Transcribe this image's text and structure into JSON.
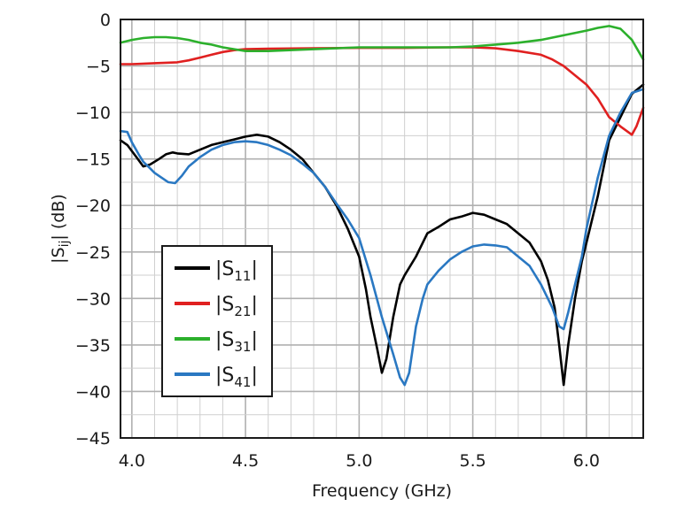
{
  "chart_data": {
    "type": "line",
    "title": "",
    "xlabel": "Frequency (GHz)",
    "ylabel": {
      "prefix": "|S",
      "sub": "ij",
      "suffix": "| (dB)"
    },
    "xlim": [
      3.95,
      6.25
    ],
    "ylim": [
      -45,
      0
    ],
    "x_ticks": [
      4.0,
      4.5,
      5.0,
      5.5,
      6.0
    ],
    "x_tick_labels": [
      "4.0",
      "4.5",
      "5.0",
      "5.5",
      "6.0"
    ],
    "y_ticks": [
      0,
      -5,
      -10,
      -15,
      -20,
      -25,
      -30,
      -35,
      -40,
      -45
    ],
    "y_tick_labels": [
      "0",
      "−5",
      "−10",
      "−15",
      "−20",
      "−25",
      "−30",
      "−35",
      "−40",
      "−45"
    ],
    "grid": true,
    "legend_position": "lower-left",
    "series": [
      {
        "label": {
          "prefix": "|S",
          "sub": "11",
          "suffix": "|"
        },
        "color": "#000000",
        "x": [
          3.95,
          3.98,
          4.02,
          4.05,
          4.08,
          4.12,
          4.15,
          4.18,
          4.2,
          4.25,
          4.3,
          4.35,
          4.4,
          4.45,
          4.5,
          4.55,
          4.6,
          4.65,
          4.7,
          4.75,
          4.8,
          4.85,
          4.9,
          4.95,
          5.0,
          5.03,
          5.05,
          5.08,
          5.1,
          5.12,
          5.15,
          5.18,
          5.2,
          5.25,
          5.3,
          5.35,
          5.4,
          5.45,
          5.5,
          5.55,
          5.6,
          5.65,
          5.7,
          5.75,
          5.8,
          5.83,
          5.86,
          5.88,
          5.9,
          5.92,
          5.95,
          5.98,
          6.0,
          6.05,
          6.1,
          6.15,
          6.2,
          6.25
        ],
        "y": [
          -13,
          -13.5,
          -14.8,
          -15.8,
          -15.6,
          -15,
          -14.5,
          -14.3,
          -14.4,
          -14.5,
          -14,
          -13.5,
          -13.2,
          -12.9,
          -12.6,
          -12.4,
          -12.6,
          -13.2,
          -14,
          -15,
          -16.5,
          -18,
          -20,
          -22.5,
          -25.5,
          -29,
          -32,
          -35.5,
          -38,
          -36.5,
          -32,
          -28.5,
          -27.5,
          -25.5,
          -23,
          -22.3,
          -21.5,
          -21.2,
          -20.8,
          -21,
          -21.5,
          -22,
          -23,
          -24,
          -26,
          -28,
          -31,
          -35,
          -39.3,
          -35,
          -30,
          -26,
          -24,
          -19,
          -13,
          -10.5,
          -8,
          -7
        ]
      },
      {
        "label": {
          "prefix": "|S",
          "sub": "21",
          "suffix": "|"
        },
        "color": "#e02020",
        "x": [
          3.95,
          4.0,
          4.1,
          4.2,
          4.25,
          4.3,
          4.35,
          4.4,
          4.45,
          4.5,
          4.6,
          4.8,
          5.0,
          5.2,
          5.4,
          5.5,
          5.6,
          5.7,
          5.8,
          5.85,
          5.9,
          5.95,
          6.0,
          6.05,
          6.1,
          6.15,
          6.2,
          6.22,
          6.25
        ],
        "y": [
          -4.8,
          -4.8,
          -4.7,
          -4.6,
          -4.4,
          -4.1,
          -3.8,
          -3.5,
          -3.3,
          -3.2,
          -3.15,
          -3.1,
          -3.05,
          -3.05,
          -3.0,
          -3.0,
          -3.1,
          -3.4,
          -3.8,
          -4.3,
          -5.0,
          -6.0,
          -7.0,
          -8.5,
          -10.5,
          -11.5,
          -12.4,
          -11.5,
          -9.5
        ]
      },
      {
        "label": {
          "prefix": "|S",
          "sub": "31",
          "suffix": "|"
        },
        "color": "#2cb02c",
        "x": [
          3.95,
          4.0,
          4.05,
          4.1,
          4.15,
          4.2,
          4.25,
          4.3,
          4.35,
          4.4,
          4.45,
          4.5,
          4.6,
          4.8,
          5.0,
          5.2,
          5.4,
          5.5,
          5.6,
          5.7,
          5.8,
          5.9,
          6.0,
          6.05,
          6.1,
          6.15,
          6.2,
          6.25
        ],
        "y": [
          -2.5,
          -2.2,
          -2.0,
          -1.9,
          -1.9,
          -2.0,
          -2.2,
          -2.5,
          -2.7,
          -3.0,
          -3.2,
          -3.4,
          -3.4,
          -3.2,
          -3.0,
          -3.0,
          -3.0,
          -2.9,
          -2.7,
          -2.5,
          -2.2,
          -1.7,
          -1.2,
          -0.9,
          -0.7,
          -1.0,
          -2.2,
          -4.3
        ]
      },
      {
        "label": {
          "prefix": "|S",
          "sub": "41",
          "suffix": "|"
        },
        "color": "#2a78c2",
        "x": [
          3.95,
          3.98,
          4.0,
          4.03,
          4.05,
          4.08,
          4.1,
          4.13,
          4.16,
          4.19,
          4.22,
          4.25,
          4.3,
          4.35,
          4.4,
          4.45,
          4.5,
          4.55,
          4.6,
          4.65,
          4.7,
          4.75,
          4.8,
          4.85,
          4.9,
          4.95,
          5.0,
          5.05,
          5.1,
          5.15,
          5.18,
          5.2,
          5.22,
          5.25,
          5.28,
          5.3,
          5.35,
          5.4,
          5.45,
          5.5,
          5.55,
          5.6,
          5.65,
          5.7,
          5.75,
          5.8,
          5.85,
          5.88,
          5.9,
          5.92,
          5.95,
          5.98,
          6.0,
          6.05,
          6.1,
          6.15,
          6.2,
          6.25
        ],
        "y": [
          -12,
          -12.1,
          -13.2,
          -14.5,
          -15.3,
          -16,
          -16.5,
          -17,
          -17.5,
          -17.6,
          -16.8,
          -15.8,
          -14.8,
          -14,
          -13.5,
          -13.2,
          -13.1,
          -13.2,
          -13.5,
          -14,
          -14.6,
          -15.5,
          -16.5,
          -18,
          -19.8,
          -21.5,
          -23.5,
          -27.5,
          -32,
          -36,
          -38.5,
          -39.3,
          -38,
          -33,
          -30,
          -28.5,
          -27,
          -25.8,
          -25,
          -24.4,
          -24.2,
          -24.3,
          -24.5,
          -25.5,
          -26.5,
          -28.5,
          -31,
          -33,
          -33.3,
          -31.5,
          -28.5,
          -25.5,
          -22.5,
          -17,
          -12.5,
          -10,
          -7.9,
          -7.5
        ]
      }
    ]
  }
}
